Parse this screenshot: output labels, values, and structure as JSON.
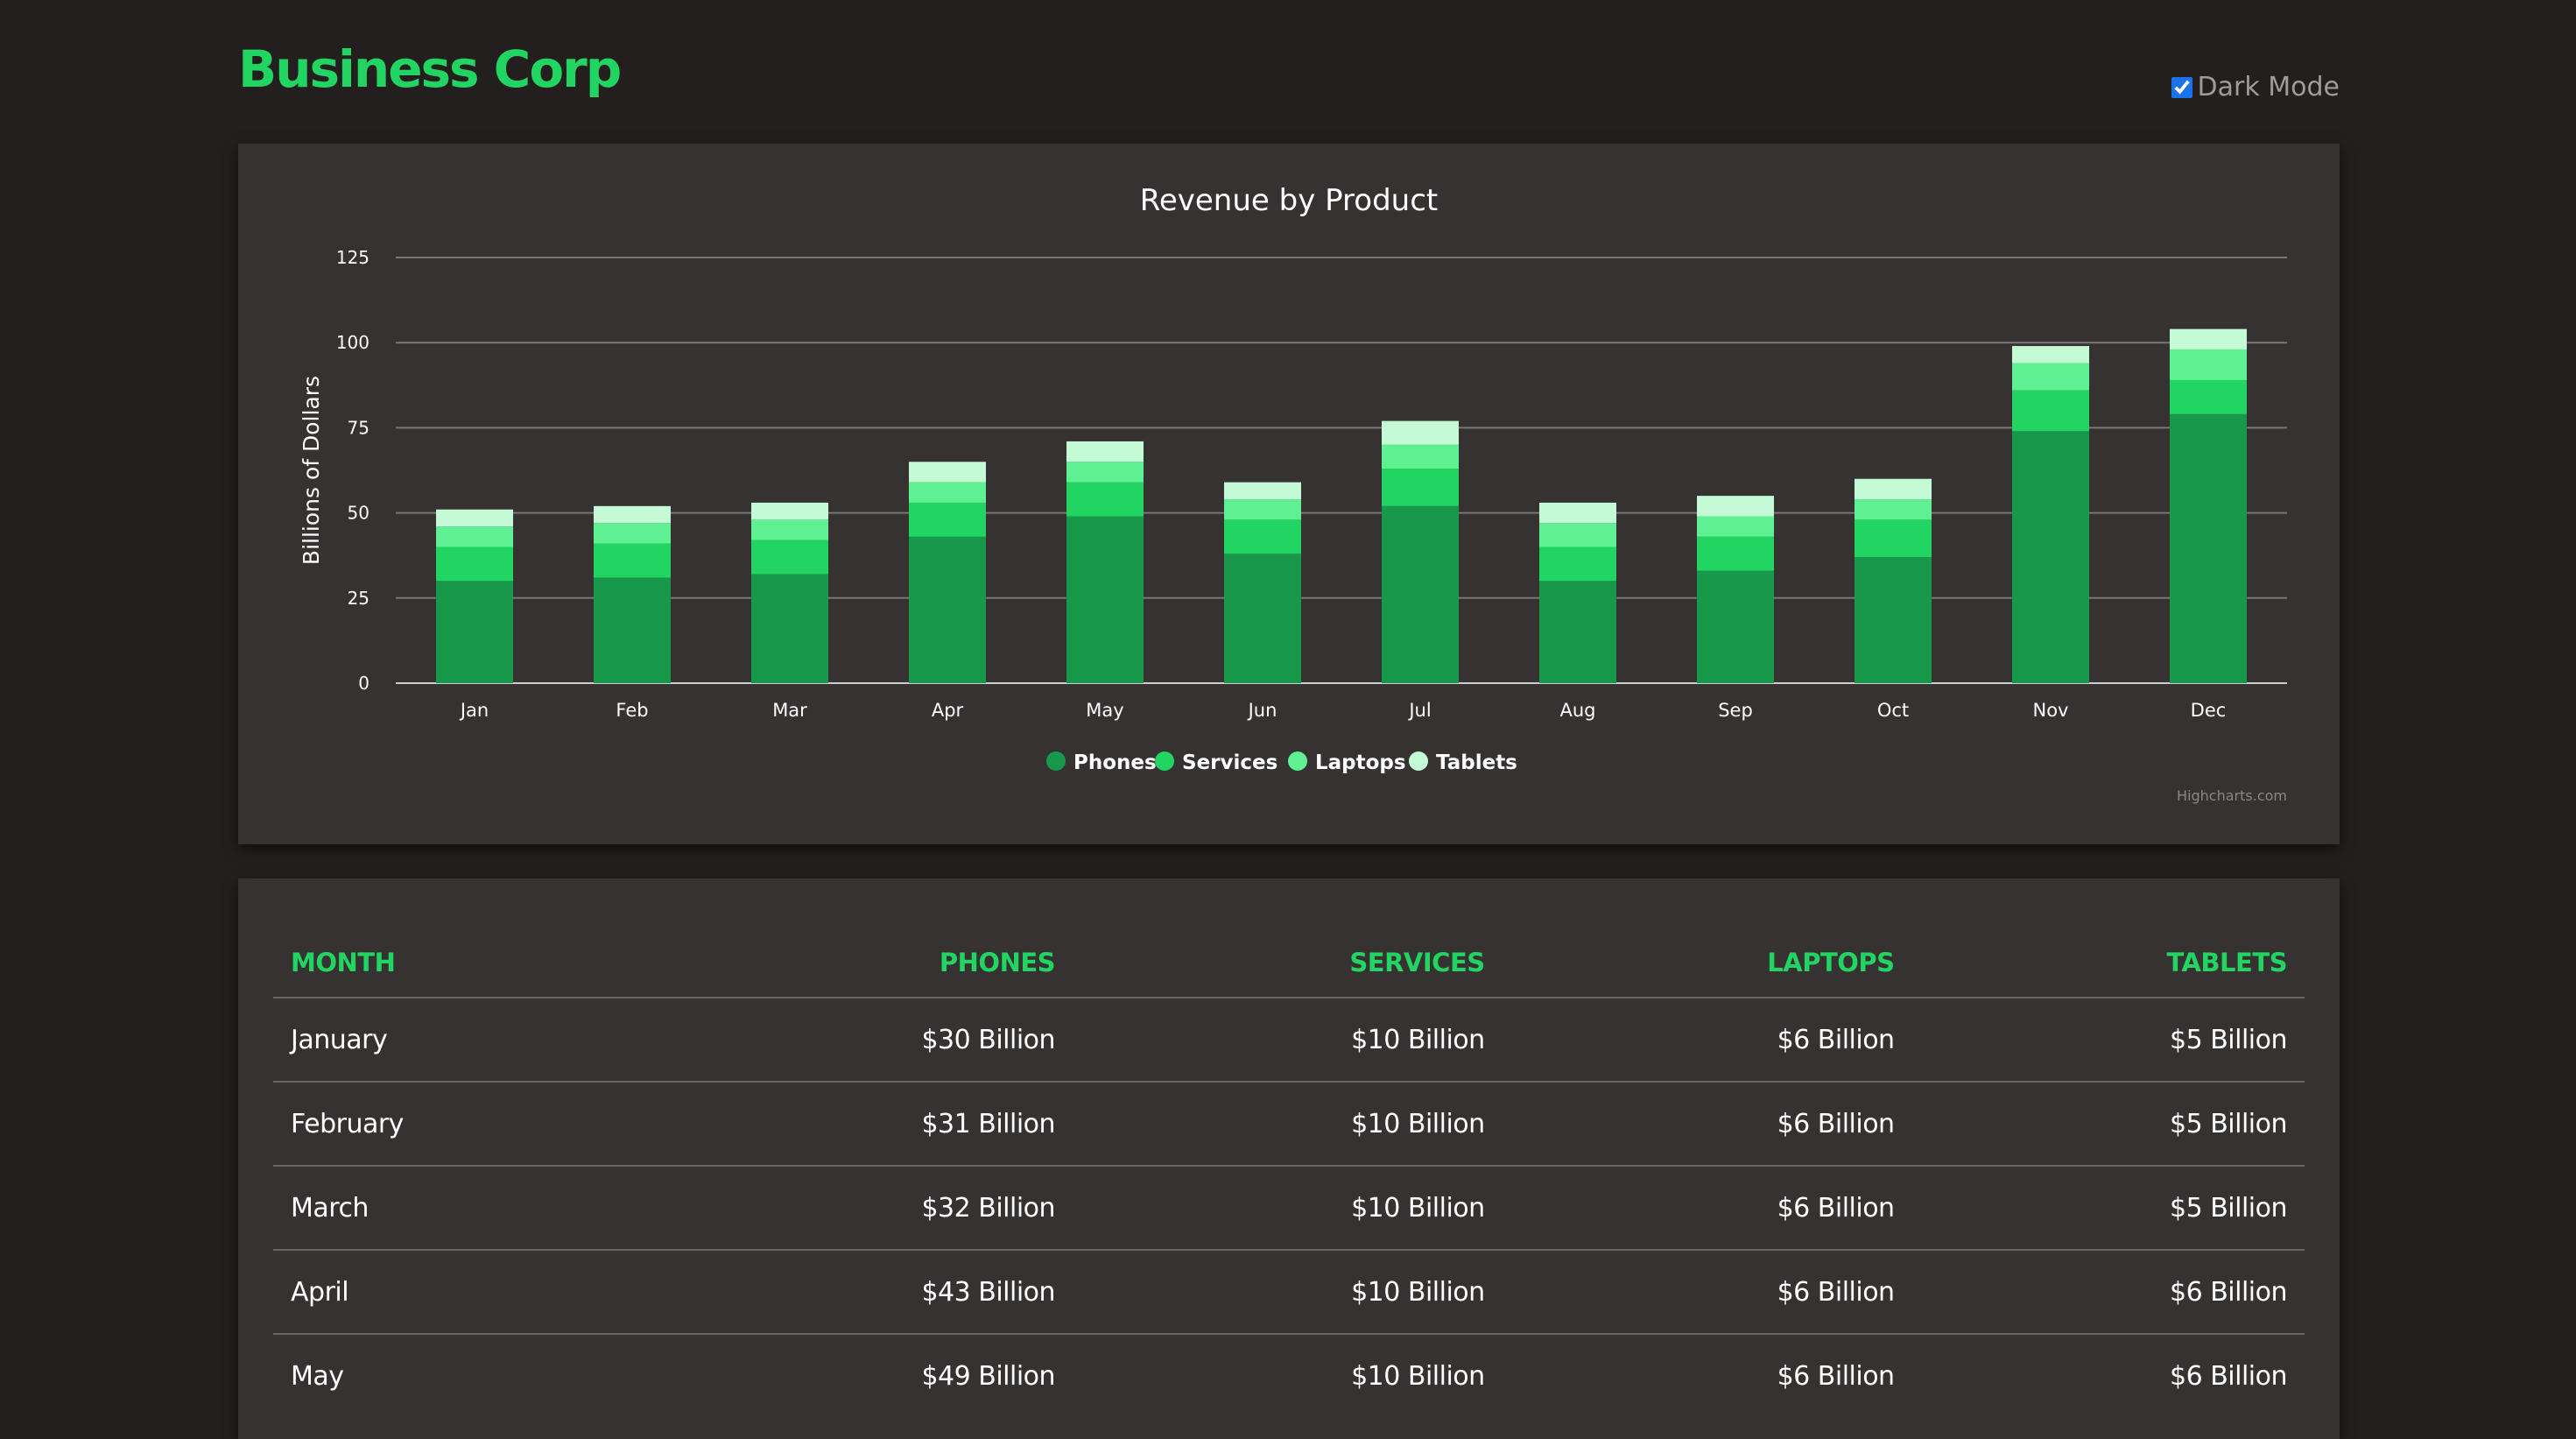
{
  "header": {
    "brand": "Business Corp",
    "dark_mode_label": "Dark Mode",
    "dark_mode_checked": true
  },
  "colors": {
    "background": "#231f1e",
    "card": "#353231",
    "accent": "#22d562",
    "phones": "#17984a",
    "services": "#22d562",
    "laptops": "#5ef091",
    "tablets": "#c4fbd6"
  },
  "chart_data": {
    "type": "bar",
    "stacked": true,
    "title": "Revenue by Product",
    "ylabel": "Billions of Dollars",
    "xlabel": "",
    "ylim": [
      0,
      125
    ],
    "yticks": [
      0,
      25,
      50,
      75,
      100,
      125
    ],
    "grid": true,
    "legend_position": "bottom-center",
    "credits": "Highcharts.com",
    "categories": [
      "Jan",
      "Feb",
      "Mar",
      "Apr",
      "May",
      "Jun",
      "Jul",
      "Aug",
      "Sep",
      "Oct",
      "Nov",
      "Dec"
    ],
    "series": [
      {
        "name": "Phones",
        "color": "#17984a",
        "values": [
          30,
          31,
          32,
          43,
          49,
          38,
          52,
          30,
          33,
          37,
          74,
          79
        ]
      },
      {
        "name": "Services",
        "color": "#22d562",
        "values": [
          10,
          10,
          10,
          10,
          10,
          10,
          11,
          10,
          10,
          11,
          12,
          10
        ]
      },
      {
        "name": "Laptops",
        "color": "#5ef091",
        "values": [
          6,
          6,
          6,
          6,
          6,
          6,
          7,
          7,
          6,
          6,
          8,
          9
        ]
      },
      {
        "name": "Tablets",
        "color": "#c4fbd6",
        "values": [
          5,
          5,
          5,
          6,
          6,
          5,
          7,
          6,
          6,
          6,
          5,
          6
        ]
      }
    ]
  },
  "table": {
    "headers": [
      "Month",
      "Phones",
      "Services",
      "Laptops",
      "Tablets"
    ],
    "rows": [
      [
        "January",
        "$30 Billion",
        "$10 Billion",
        "$6 Billion",
        "$5 Billion"
      ],
      [
        "February",
        "$31 Billion",
        "$10 Billion",
        "$6 Billion",
        "$5 Billion"
      ],
      [
        "March",
        "$32 Billion",
        "$10 Billion",
        "$6 Billion",
        "$5 Billion"
      ],
      [
        "April",
        "$43 Billion",
        "$10 Billion",
        "$6 Billion",
        "$6 Billion"
      ],
      [
        "May",
        "$49 Billion",
        "$10 Billion",
        "$6 Billion",
        "$6 Billion"
      ]
    ]
  }
}
